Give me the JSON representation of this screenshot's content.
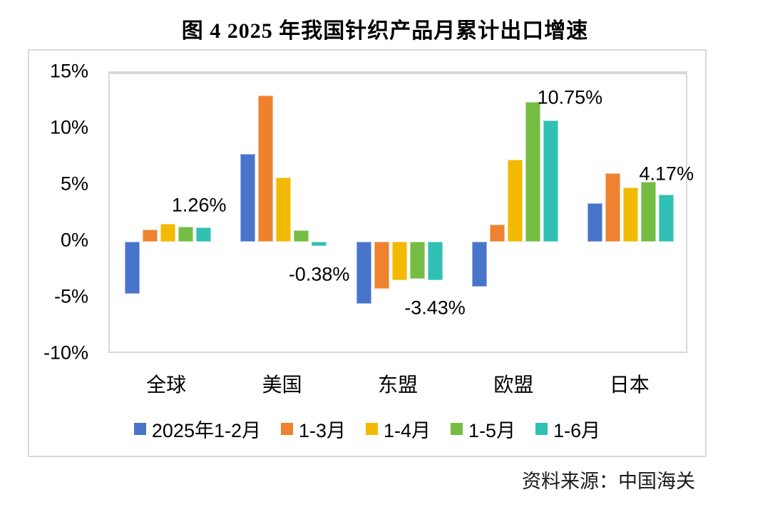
{
  "page": {
    "title": "图 4  2025 年我国针织产品月累计出口增速",
    "source": "资料来源：中国海关"
  },
  "chart_data": {
    "type": "bar",
    "title": "图 4  2025 年我国针织产品月累计出口增速",
    "categories": [
      "全球",
      "美国",
      "东盟",
      "欧盟",
      "日本"
    ],
    "series": [
      {
        "name": "2025年1-2月",
        "color": "#4874CB",
        "values": [
          -4.6,
          7.8,
          -5.5,
          -4.0,
          3.4
        ]
      },
      {
        "name": "1-3月",
        "color": "#EE822F",
        "values": [
          1.1,
          13.0,
          -4.2,
          1.5,
          6.1
        ]
      },
      {
        "name": "1-4月",
        "color": "#F2BA02",
        "values": [
          1.6,
          5.7,
          -3.4,
          7.3,
          4.8
        ]
      },
      {
        "name": "1-5月",
        "color": "#75BD42",
        "values": [
          1.3,
          1.0,
          -3.3,
          12.4,
          5.3
        ]
      },
      {
        "name": "1-6月",
        "color": "#30C0B4",
        "values": [
          1.26,
          -0.38,
          -3.43,
          10.75,
          4.17
        ]
      }
    ],
    "data_labels": [
      {
        "category": "全球",
        "series": "1-6月",
        "text": "1.26%"
      },
      {
        "category": "美国",
        "series": "1-6月",
        "text": "-0.38%"
      },
      {
        "category": "东盟",
        "series": "1-6月",
        "text": "-3.43%"
      },
      {
        "category": "欧盟",
        "series": "1-6月",
        "text": "10.75%"
      },
      {
        "category": "日本",
        "series": "1-6月",
        "text": "4.17%"
      }
    ],
    "y_ticks": [
      {
        "value": 15,
        "label": "15%"
      },
      {
        "value": 10,
        "label": "10%"
      },
      {
        "value": 5,
        "label": "5%"
      },
      {
        "value": 0,
        "label": "0%"
      },
      {
        "value": -5,
        "label": "-5%"
      },
      {
        "value": -10,
        "label": "-10%"
      }
    ],
    "ylim": [
      -10,
      15
    ],
    "grid": false,
    "legend_position": "bottom",
    "axis_color": "#d9d9d9",
    "text_color": "#000000"
  }
}
